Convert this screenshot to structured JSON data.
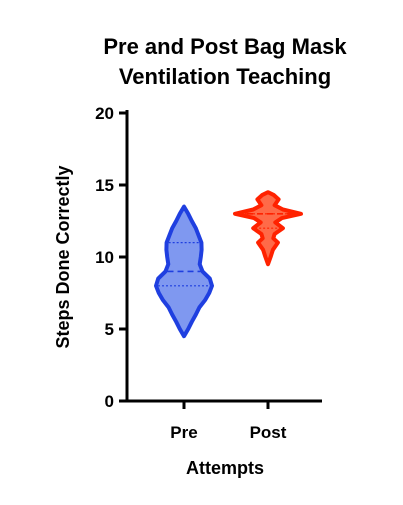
{
  "chart_data": {
    "type": "violin",
    "title_line1": "Pre and Post Bag Mask",
    "title_line2": "Ventilation Teaching",
    "xlabel": "Attempts",
    "ylabel": "Steps Done Correctly",
    "ylim": [
      0,
      20
    ],
    "yticks": [
      "0",
      "5",
      "10",
      "15",
      "20"
    ],
    "categories": [
      "Pre",
      "Post"
    ],
    "grid": false,
    "series": [
      {
        "name": "Pre",
        "stroke": "#1f3fe0",
        "fill": "#7f98f0",
        "min": 4.5,
        "max": 13.5,
        "q1": 8,
        "median": 9,
        "q3": 11,
        "density": [
          [
            4.5,
            0.0
          ],
          [
            5.0,
            0.15
          ],
          [
            5.5,
            0.28
          ],
          [
            6.0,
            0.42
          ],
          [
            6.5,
            0.55
          ],
          [
            7.0,
            0.75
          ],
          [
            7.5,
            0.9
          ],
          [
            8.0,
            1.0
          ],
          [
            8.5,
            0.92
          ],
          [
            9.0,
            0.66
          ],
          [
            9.5,
            0.56
          ],
          [
            10.0,
            0.6
          ],
          [
            10.5,
            0.63
          ],
          [
            11.0,
            0.62
          ],
          [
            11.5,
            0.52
          ],
          [
            12.0,
            0.42
          ],
          [
            12.5,
            0.28
          ],
          [
            13.0,
            0.15
          ],
          [
            13.5,
            0.0
          ]
        ]
      },
      {
        "name": "Post",
        "stroke": "#ff2200",
        "fill": "#ff6a48",
        "min": 9.5,
        "max": 14.5,
        "q1": 12,
        "median": 13,
        "q3": 13,
        "density": [
          [
            9.5,
            0.0
          ],
          [
            10.0,
            0.08
          ],
          [
            10.5,
            0.15
          ],
          [
            11.0,
            0.3
          ],
          [
            11.3,
            0.16
          ],
          [
            11.6,
            0.2
          ],
          [
            12.0,
            0.45
          ],
          [
            12.4,
            0.22
          ],
          [
            12.7,
            0.42
          ],
          [
            13.0,
            1.0
          ],
          [
            13.3,
            0.45
          ],
          [
            13.6,
            0.2
          ],
          [
            14.0,
            0.32
          ],
          [
            14.3,
            0.18
          ],
          [
            14.5,
            0.0
          ]
        ]
      }
    ]
  }
}
